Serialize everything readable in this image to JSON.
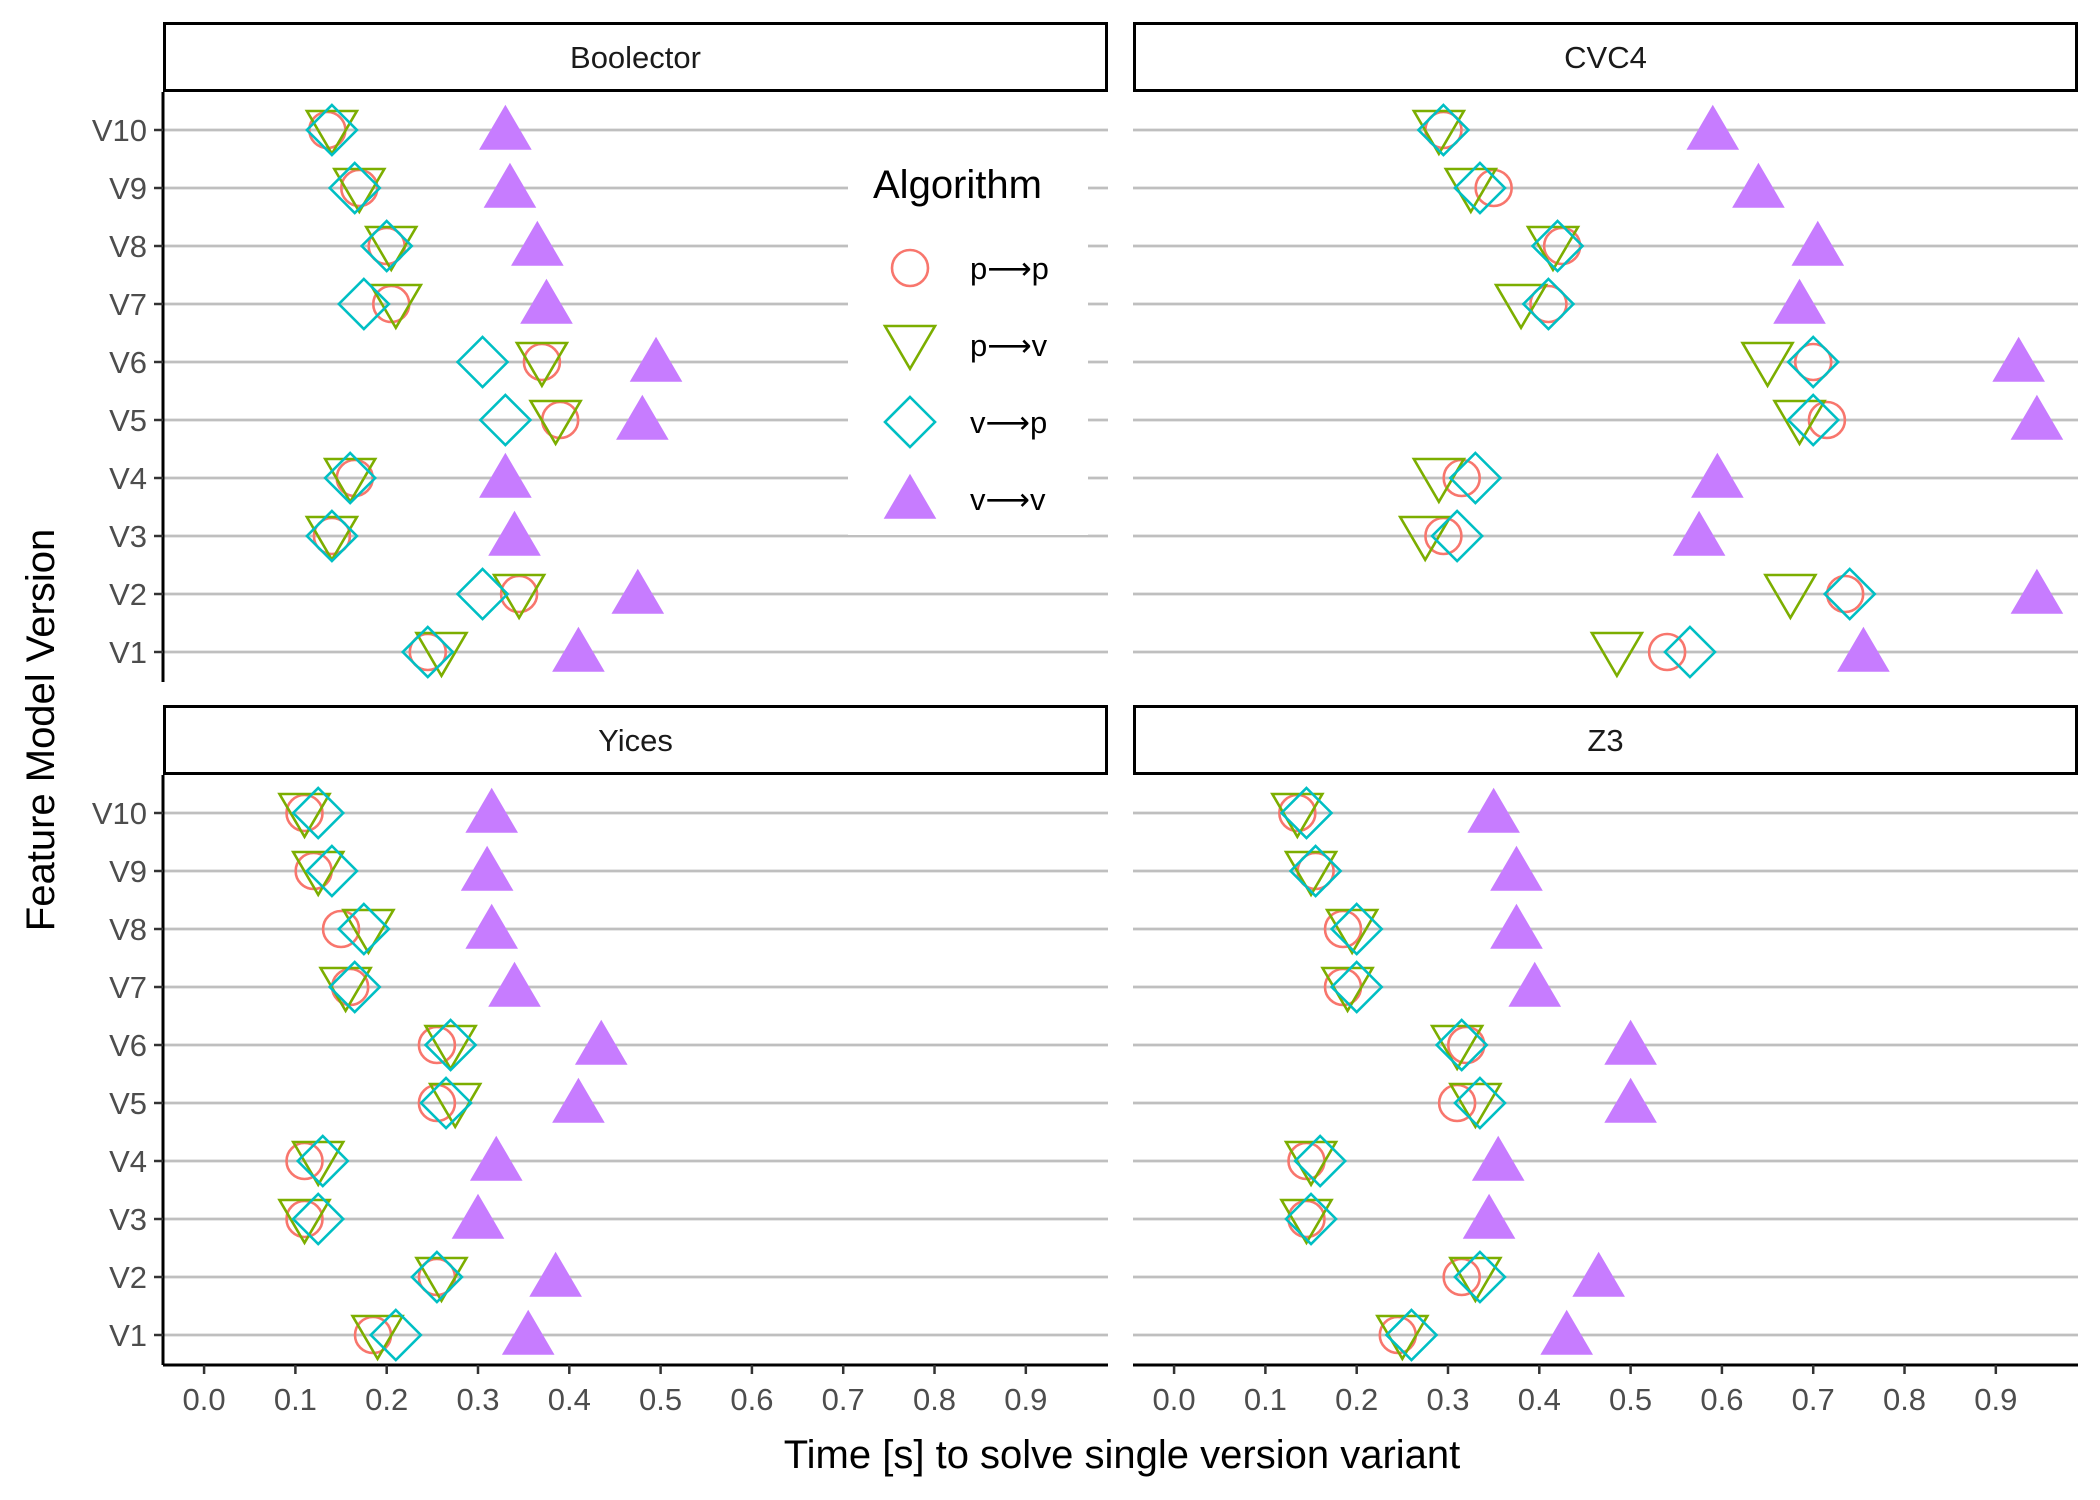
{
  "chart_data": {
    "type": "scatter",
    "x_label": "Time [s] to solve single version variant",
    "y_label": "Feature Model Version",
    "x_ticks": [
      0.0,
      0.1,
      0.2,
      0.3,
      0.4,
      0.5,
      0.6,
      0.7,
      0.8,
      0.9
    ],
    "x_tick_labels": [
      "0.0",
      "0.1",
      "0.2",
      "0.3",
      "0.4",
      "0.5",
      "0.6",
      "0.7",
      "0.8",
      "0.9"
    ],
    "xlim": [
      -0.045,
      0.99
    ],
    "y_categories": [
      "V1",
      "V2",
      "V3",
      "V4",
      "V5",
      "V6",
      "V7",
      "V8",
      "V9",
      "V10"
    ],
    "grid": "horizontal",
    "legend": {
      "title": "Algorithm",
      "placement": "inside top-left panel",
      "entries": [
        {
          "label": "p⟶p",
          "shape": "open-circle",
          "color": "#F8766D"
        },
        {
          "label": "p⟶v",
          "shape": "open-down-triangle",
          "color": "#7CAE00"
        },
        {
          "label": "v⟶p",
          "shape": "open-diamond",
          "color": "#00BFC4"
        },
        {
          "label": "v⟶v",
          "shape": "filled-up-triangle",
          "color": "#C77CFF"
        }
      ]
    },
    "panels": [
      {
        "title": "Boolector",
        "series": [
          {
            "name": "p⟶p",
            "values": [
              0.245,
              0.345,
              0.14,
              0.165,
              0.39,
              0.37,
              0.205,
              0.2,
              0.17,
              0.135
            ]
          },
          {
            "name": "p⟶v",
            "values": [
              0.26,
              0.345,
              0.14,
              0.16,
              0.385,
              0.37,
              0.21,
              0.205,
              0.17,
              0.14
            ]
          },
          {
            "name": "v⟶p",
            "values": [
              0.245,
              0.305,
              0.14,
              0.16,
              0.33,
              0.305,
              0.175,
              0.2,
              0.165,
              0.14
            ]
          },
          {
            "name": "v⟶v",
            "values": [
              0.41,
              0.475,
              0.34,
              0.33,
              0.48,
              0.495,
              0.375,
              0.365,
              0.335,
              0.33
            ]
          }
        ]
      },
      {
        "title": "CVC4",
        "series": [
          {
            "name": "p⟶p",
            "values": [
              0.54,
              0.735,
              0.295,
              0.315,
              0.715,
              0.7,
              0.41,
              0.425,
              0.35,
              0.295
            ]
          },
          {
            "name": "p⟶v",
            "values": [
              0.485,
              0.675,
              0.275,
              0.29,
              0.685,
              0.65,
              0.38,
              0.415,
              0.325,
              0.29
            ]
          },
          {
            "name": "v⟶p",
            "values": [
              0.565,
              0.74,
              0.31,
              0.33,
              0.7,
              0.7,
              0.41,
              0.42,
              0.335,
              0.295
            ]
          },
          {
            "name": "v⟶v",
            "values": [
              0.755,
              0.945,
              0.575,
              0.595,
              0.945,
              0.925,
              0.685,
              0.705,
              0.64,
              0.59
            ]
          }
        ]
      },
      {
        "title": "Yices",
        "series": [
          {
            "name": "p⟶p",
            "values": [
              0.185,
              0.255,
              0.11,
              0.11,
              0.255,
              0.255,
              0.16,
              0.15,
              0.12,
              0.11
            ]
          },
          {
            "name": "p⟶v",
            "values": [
              0.19,
              0.26,
              0.11,
              0.125,
              0.275,
              0.27,
              0.155,
              0.18,
              0.125,
              0.11
            ]
          },
          {
            "name": "v⟶p",
            "values": [
              0.21,
              0.255,
              0.125,
              0.13,
              0.265,
              0.27,
              0.165,
              0.175,
              0.14,
              0.125
            ]
          },
          {
            "name": "v⟶v",
            "values": [
              0.355,
              0.385,
              0.3,
              0.32,
              0.41,
              0.435,
              0.34,
              0.315,
              0.31,
              0.315
            ]
          }
        ]
      },
      {
        "title": "Z3",
        "series": [
          {
            "name": "p⟶p",
            "values": [
              0.245,
              0.315,
              0.145,
              0.145,
              0.31,
              0.32,
              0.185,
              0.185,
              0.155,
              0.135
            ]
          },
          {
            "name": "p⟶v",
            "values": [
              0.25,
              0.33,
              0.145,
              0.15,
              0.33,
              0.31,
              0.19,
              0.195,
              0.15,
              0.135
            ]
          },
          {
            "name": "v⟶p",
            "values": [
              0.26,
              0.335,
              0.15,
              0.16,
              0.335,
              0.315,
              0.2,
              0.2,
              0.155,
              0.145
            ]
          },
          {
            "name": "v⟶v",
            "values": [
              0.43,
              0.465,
              0.345,
              0.355,
              0.5,
              0.5,
              0.395,
              0.375,
              0.375,
              0.35
            ]
          }
        ]
      }
    ]
  }
}
